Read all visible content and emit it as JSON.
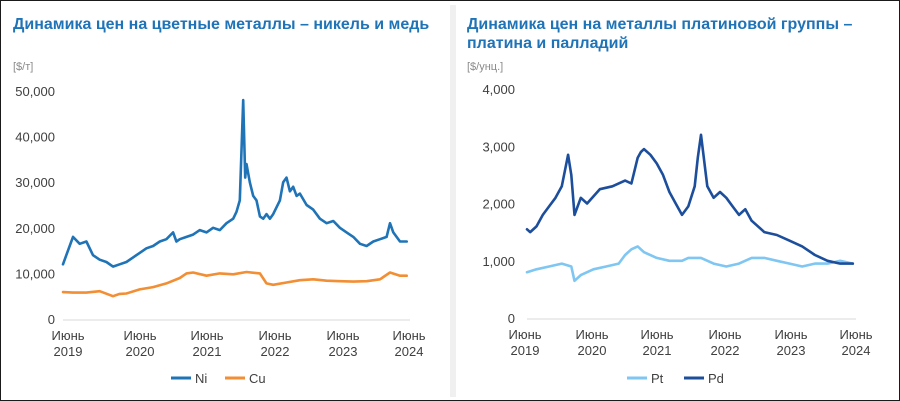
{
  "chart_data": [
    {
      "type": "line",
      "title": "Динамика цен на цветные металлы – никель и медь",
      "unit_label": "[$/т]",
      "y_ticks": [
        "0",
        "10,000",
        "20,000",
        "30,000",
        "40,000",
        "50,000"
      ],
      "x_ticks": [
        {
          "line1": "Июнь",
          "line2": "2019"
        },
        {
          "line1": "Июнь",
          "line2": "2020"
        },
        {
          "line1": "Июнь",
          "line2": "2021"
        },
        {
          "line1": "Июнь",
          "line2": "2022"
        },
        {
          "line1": "Июнь",
          "line2": "2023"
        },
        {
          "line1": "Июнь",
          "line2": "2024"
        }
      ],
      "ylim": [
        0,
        50000
      ],
      "xlim": [
        2019.45,
        2024.65
      ],
      "grid": false,
      "legend": "bottom",
      "series": [
        {
          "name": "Ni",
          "color": "#1f73b7",
          "x": [
            2019.45,
            2019.5,
            2019.6,
            2019.7,
            2019.8,
            2019.9,
            2020.0,
            2020.1,
            2020.2,
            2020.3,
            2020.4,
            2020.5,
            2020.6,
            2020.7,
            2020.8,
            2020.9,
            2021.0,
            2021.1,
            2021.15,
            2021.2,
            2021.3,
            2021.4,
            2021.5,
            2021.6,
            2021.7,
            2021.8,
            2021.9,
            2022.0,
            2022.05,
            2022.1,
            2022.15,
            2022.18,
            2022.2,
            2022.25,
            2022.3,
            2022.35,
            2022.4,
            2022.45,
            2022.5,
            2022.55,
            2022.6,
            2022.7,
            2022.75,
            2022.8,
            2022.85,
            2022.9,
            2022.95,
            2023.0,
            2023.1,
            2023.2,
            2023.3,
            2023.4,
            2023.5,
            2023.6,
            2023.7,
            2023.8,
            2023.9,
            2024.0,
            2024.1,
            2024.2,
            2024.3,
            2024.35,
            2024.4,
            2024.5,
            2024.6
          ],
          "y": [
            12000,
            14000,
            18000,
            16500,
            17000,
            14000,
            13000,
            12500,
            11500,
            12000,
            12500,
            13500,
            14500,
            15500,
            16000,
            17000,
            17500,
            19000,
            17000,
            17500,
            18000,
            18500,
            19500,
            19000,
            20000,
            19500,
            21000,
            22000,
            23500,
            26000,
            48000,
            31000,
            34000,
            30000,
            27000,
            26000,
            22500,
            22000,
            23000,
            22000,
            23000,
            26000,
            30000,
            31000,
            28000,
            29000,
            27000,
            27500,
            25000,
            24000,
            22000,
            21000,
            21500,
            20000,
            19000,
            18000,
            16500,
            16000,
            17000,
            17500,
            18000,
            21000,
            19000,
            17000,
            17000
          ]
        },
        {
          "name": "Cu",
          "color": "#f28e33",
          "x": [
            2019.45,
            2019.6,
            2019.8,
            2020.0,
            2020.2,
            2020.3,
            2020.4,
            2020.6,
            2020.8,
            2021.0,
            2021.2,
            2021.3,
            2021.4,
            2021.6,
            2021.8,
            2022.0,
            2022.2,
            2022.4,
            2022.5,
            2022.6,
            2022.8,
            2023.0,
            2023.2,
            2023.4,
            2023.6,
            2023.8,
            2024.0,
            2024.2,
            2024.35,
            2024.5,
            2024.6
          ],
          "y": [
            5900,
            5800,
            5800,
            6100,
            5000,
            5500,
            5600,
            6500,
            7000,
            7800,
            9000,
            10000,
            10200,
            9500,
            10000,
            9800,
            10300,
            10000,
            7800,
            7500,
            8000,
            8500,
            8700,
            8400,
            8300,
            8200,
            8300,
            8700,
            10200,
            9500,
            9500
          ]
        }
      ]
    },
    {
      "type": "line",
      "title": "Динамика цен на металлы платиновой группы – платина и палладий",
      "unit_label": "[$/унц.]",
      "y_ticks": [
        "0",
        "1,000",
        "2,000",
        "3,000",
        "4,000"
      ],
      "x_ticks": [
        {
          "line1": "Июнь",
          "line2": "2019"
        },
        {
          "line1": "Июнь",
          "line2": "2020"
        },
        {
          "line1": "Июнь",
          "line2": "2021"
        },
        {
          "line1": "Июнь",
          "line2": "2022"
        },
        {
          "line1": "Июнь",
          "line2": "2023"
        },
        {
          "line1": "Июнь",
          "line2": "2024"
        }
      ],
      "ylim": [
        0,
        4000
      ],
      "xlim": [
        2019.45,
        2024.65
      ],
      "grid": false,
      "legend": "bottom",
      "series": [
        {
          "name": "Pt",
          "color": "#7fc6f2",
          "x": [
            2019.45,
            2019.6,
            2019.8,
            2020.0,
            2020.15,
            2020.2,
            2020.3,
            2020.5,
            2020.7,
            2020.9,
            2021.0,
            2021.1,
            2021.2,
            2021.3,
            2021.5,
            2021.7,
            2021.9,
            2022.0,
            2022.2,
            2022.4,
            2022.6,
            2022.8,
            2023.0,
            2023.2,
            2023.4,
            2023.6,
            2023.8,
            2024.0,
            2024.2,
            2024.4,
            2024.6
          ],
          "y": [
            800,
            850,
            900,
            950,
            900,
            650,
            750,
            850,
            900,
            950,
            1100,
            1200,
            1250,
            1150,
            1050,
            1000,
            1000,
            1050,
            1050,
            950,
            900,
            950,
            1050,
            1050,
            1000,
            950,
            900,
            950,
            950,
            1000,
            950
          ]
        },
        {
          "name": "Pd",
          "color": "#1c4e9c",
          "x": [
            2019.45,
            2019.5,
            2019.6,
            2019.7,
            2019.8,
            2019.9,
            2020.0,
            2020.1,
            2020.15,
            2020.2,
            2020.3,
            2020.4,
            2020.6,
            2020.8,
            2021.0,
            2021.1,
            2021.2,
            2021.25,
            2021.3,
            2021.4,
            2021.5,
            2021.6,
            2021.7,
            2021.8,
            2021.9,
            2022.0,
            2022.1,
            2022.15,
            2022.2,
            2022.3,
            2022.4,
            2022.5,
            2022.6,
            2022.7,
            2022.8,
            2022.9,
            2023.0,
            2023.2,
            2023.4,
            2023.6,
            2023.8,
            2024.0,
            2024.2,
            2024.4,
            2024.6
          ],
          "y": [
            1550,
            1500,
            1600,
            1800,
            1950,
            2100,
            2300,
            2850,
            2500,
            1800,
            2100,
            2000,
            2250,
            2300,
            2400,
            2350,
            2800,
            2900,
            2950,
            2850,
            2700,
            2500,
            2200,
            2000,
            1800,
            1950,
            2300,
            2800,
            3200,
            2300,
            2100,
            2200,
            2100,
            1950,
            1800,
            1900,
            1700,
            1500,
            1450,
            1350,
            1250,
            1100,
            1000,
            950,
            950
          ]
        }
      ]
    }
  ],
  "legend_left": [
    {
      "name": "Ni",
      "color": "#1f73b7"
    },
    {
      "name": "Cu",
      "color": "#f28e33"
    }
  ],
  "legend_right": [
    {
      "name": "Pt",
      "color": "#7fc6f2"
    },
    {
      "name": "Pd",
      "color": "#1c4e9c"
    }
  ]
}
